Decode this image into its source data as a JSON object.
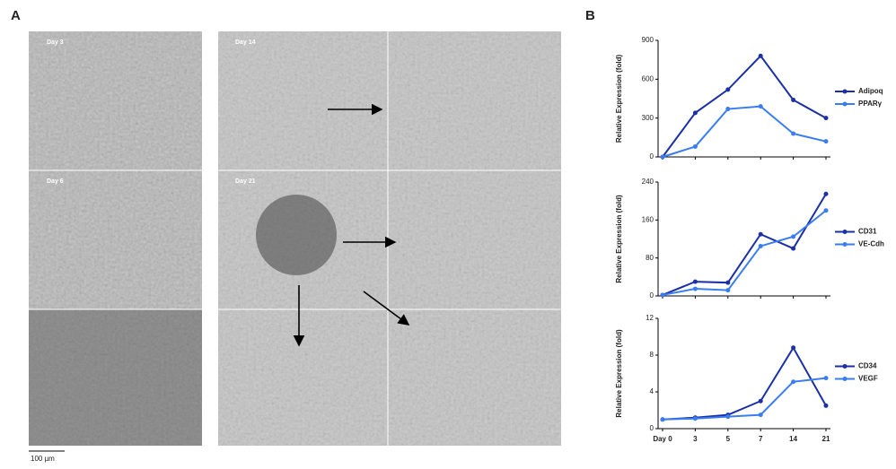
{
  "panel_a": {
    "label": "A",
    "image_labels": [
      "Day 3",
      "Day 6",
      "Day 14",
      "Day 21"
    ],
    "scale_bar": "100 µm"
  },
  "panel_b": {
    "label": "B"
  },
  "chart_data": [
    {
      "type": "line",
      "y_label": "Relative Expression (fold)",
      "ylim": [
        0,
        900
      ],
      "yticks": [
        0,
        300,
        600,
        900
      ],
      "series": [
        {
          "name": "Adipoq",
          "color": "#1a2fa8",
          "values": [
            0,
            340,
            520,
            780,
            440,
            300
          ]
        },
        {
          "name": "PPARγ",
          "color": "#3a7df0",
          "values": [
            0,
            80,
            370,
            390,
            180,
            120
          ]
        }
      ]
    },
    {
      "type": "line",
      "y_label": "Relative Expression (fold)",
      "ylim": [
        0,
        240
      ],
      "yticks": [
        0,
        80,
        160,
        240
      ],
      "series": [
        {
          "name": "CD31",
          "color": "#1a2fa8",
          "values": [
            2,
            30,
            28,
            130,
            100,
            215
          ]
        },
        {
          "name": "VE-Cdh",
          "color": "#3a7df0",
          "values": [
            2,
            15,
            12,
            105,
            125,
            180
          ]
        }
      ]
    },
    {
      "type": "line",
      "y_label": "Relative Expression (fold)",
      "ylim": [
        0,
        12
      ],
      "yticks": [
        0,
        4,
        8,
        12
      ],
      "categories": [
        "Day 0",
        "3",
        "5",
        "7",
        "14",
        "21"
      ],
      "series": [
        {
          "name": "CD34",
          "color": "#1a2fa8",
          "values": [
            1,
            1.2,
            1.5,
            3,
            8.8,
            2.5
          ]
        },
        {
          "name": "VEGF",
          "color": "#3a7df0",
          "values": [
            1,
            1.1,
            1.3,
            1.5,
            5.1,
            5.5
          ]
        }
      ]
    }
  ]
}
